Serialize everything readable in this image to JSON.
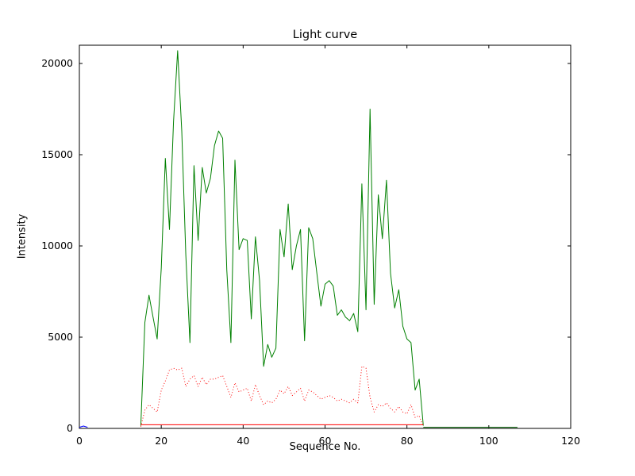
{
  "chart_data": {
    "type": "line",
    "title": "Light curve",
    "xlabel": "Sequence No.",
    "ylabel": "Intensity",
    "xlim": [
      0,
      120
    ],
    "ylim": [
      0,
      21000
    ],
    "xticks": [
      0,
      20,
      40,
      60,
      80,
      100,
      120
    ],
    "yticks": [
      0,
      5000,
      10000,
      15000,
      20000
    ],
    "grid": false,
    "legend": null,
    "background": "#ffffff",
    "axis_color": "#000000",
    "series": [
      {
        "name": "intensity-main",
        "color": "#008000",
        "style": "solid",
        "x_start": 15,
        "values": [
          150,
          5800,
          7300,
          6100,
          4900,
          8800,
          14800,
          10900,
          16800,
          20700,
          16300,
          9500,
          4700,
          14400,
          10300,
          14300,
          12900,
          13700,
          15500,
          16300,
          15900,
          8700,
          4700,
          14700,
          9800,
          10400,
          10300,
          6000,
          10500,
          8100,
          3400,
          4600,
          3900,
          4400,
          10900,
          9400,
          12300,
          8700,
          10000,
          10900,
          4800,
          11000,
          10400,
          8500,
          6700,
          7900,
          8100,
          7800,
          6200,
          6500,
          6100,
          5900,
          6300,
          5300,
          13400,
          6500,
          17500,
          6800,
          12800,
          10400,
          13600,
          8500,
          6600,
          7600,
          5600,
          4900,
          4700,
          2100,
          2700,
          150
        ]
      },
      {
        "name": "intensity-tail-flat",
        "color": "#006000",
        "style": "solid",
        "x": [
          84,
          107
        ],
        "values": [
          60,
          60
        ]
      },
      {
        "name": "background-dotted",
        "color": "#ff0000",
        "style": "dotted",
        "x_start": 15,
        "values": [
          100,
          1000,
          1300,
          1100,
          900,
          2100,
          2600,
          3200,
          3300,
          3200,
          3300,
          2300,
          2700,
          2900,
          2300,
          2800,
          2400,
          2700,
          2700,
          2800,
          2900,
          2300,
          1700,
          2500,
          2000,
          2100,
          2200,
          1500,
          2400,
          1800,
          1300,
          1500,
          1400,
          1600,
          2100,
          1900,
          2300,
          1800,
          2000,
          2200,
          1500,
          2100,
          2000,
          1800,
          1600,
          1700,
          1800,
          1700,
          1500,
          1600,
          1500,
          1400,
          1600,
          1400,
          3400,
          3300,
          1700,
          900,
          1300,
          1200,
          1400,
          1100,
          900,
          1200,
          900,
          800,
          1300,
          600,
          700,
          100
        ]
      },
      {
        "name": "baseline-solid-red",
        "color": "#ff0000",
        "style": "solid",
        "x": [
          15,
          84
        ],
        "values": [
          200,
          200
        ]
      },
      {
        "name": "start-marker-blue",
        "color": "#0000ff",
        "style": "solid",
        "x": [
          0,
          1,
          2
        ],
        "values": [
          60,
          130,
          60
        ]
      }
    ]
  }
}
